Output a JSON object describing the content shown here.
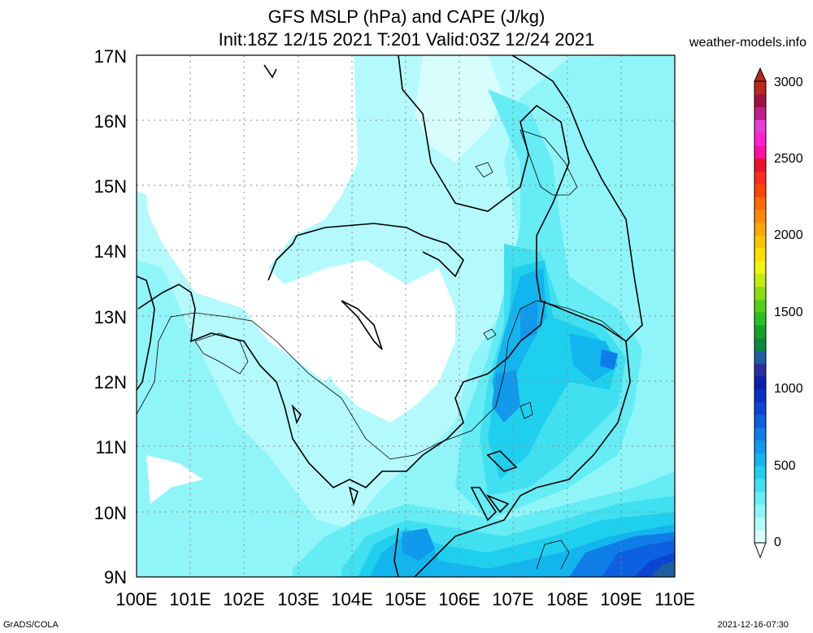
{
  "title_line1": "GFS MSLP (hPa) and CAPE (J/kg)",
  "title_line2": "Init:18Z 12/15 2021 T:201 Valid:03Z 12/24 2021",
  "site": "weather-models.info",
  "footer_left": "GrADS/COLA",
  "footer_right": "2021-12-16-07:30",
  "y_labels": [
    "17N",
    "16N",
    "15N",
    "14N",
    "13N",
    "12N",
    "11N",
    "10N",
    "9N"
  ],
  "x_labels": [
    "100E",
    "101E",
    "102E",
    "103E",
    "104E",
    "105E",
    "106E",
    "107E",
    "108E",
    "109E",
    "110E"
  ],
  "colorbar": {
    "labels": [
      "3000",
      "2500",
      "2000",
      "1500",
      "1000",
      "500",
      "0"
    ],
    "colors": [
      "#d7fdfd",
      "#b4fafc",
      "#8cf4f8",
      "#66ecf4",
      "#41e0f0",
      "#1fcfee",
      "#13b5ee",
      "#1199ec",
      "#0f7de8",
      "#0d60e0",
      "#0c44d4",
      "#0a2fc6",
      "#0b1fae",
      "#2a2ea0",
      "#1e5ea0",
      "#0b8a3b",
      "#12a32a",
      "#2abf22",
      "#55d016",
      "#8ae00e",
      "#c0ee0a",
      "#f2f60a",
      "#fde000",
      "#ffc400",
      "#ffa600",
      "#ff8a00",
      "#ff6a00",
      "#ff4400",
      "#ff2a20",
      "#f0102a",
      "#ff10a0",
      "#ff20d0",
      "#e63cd8",
      "#c0208c",
      "#a01040",
      "#b8281c"
    ]
  }
}
